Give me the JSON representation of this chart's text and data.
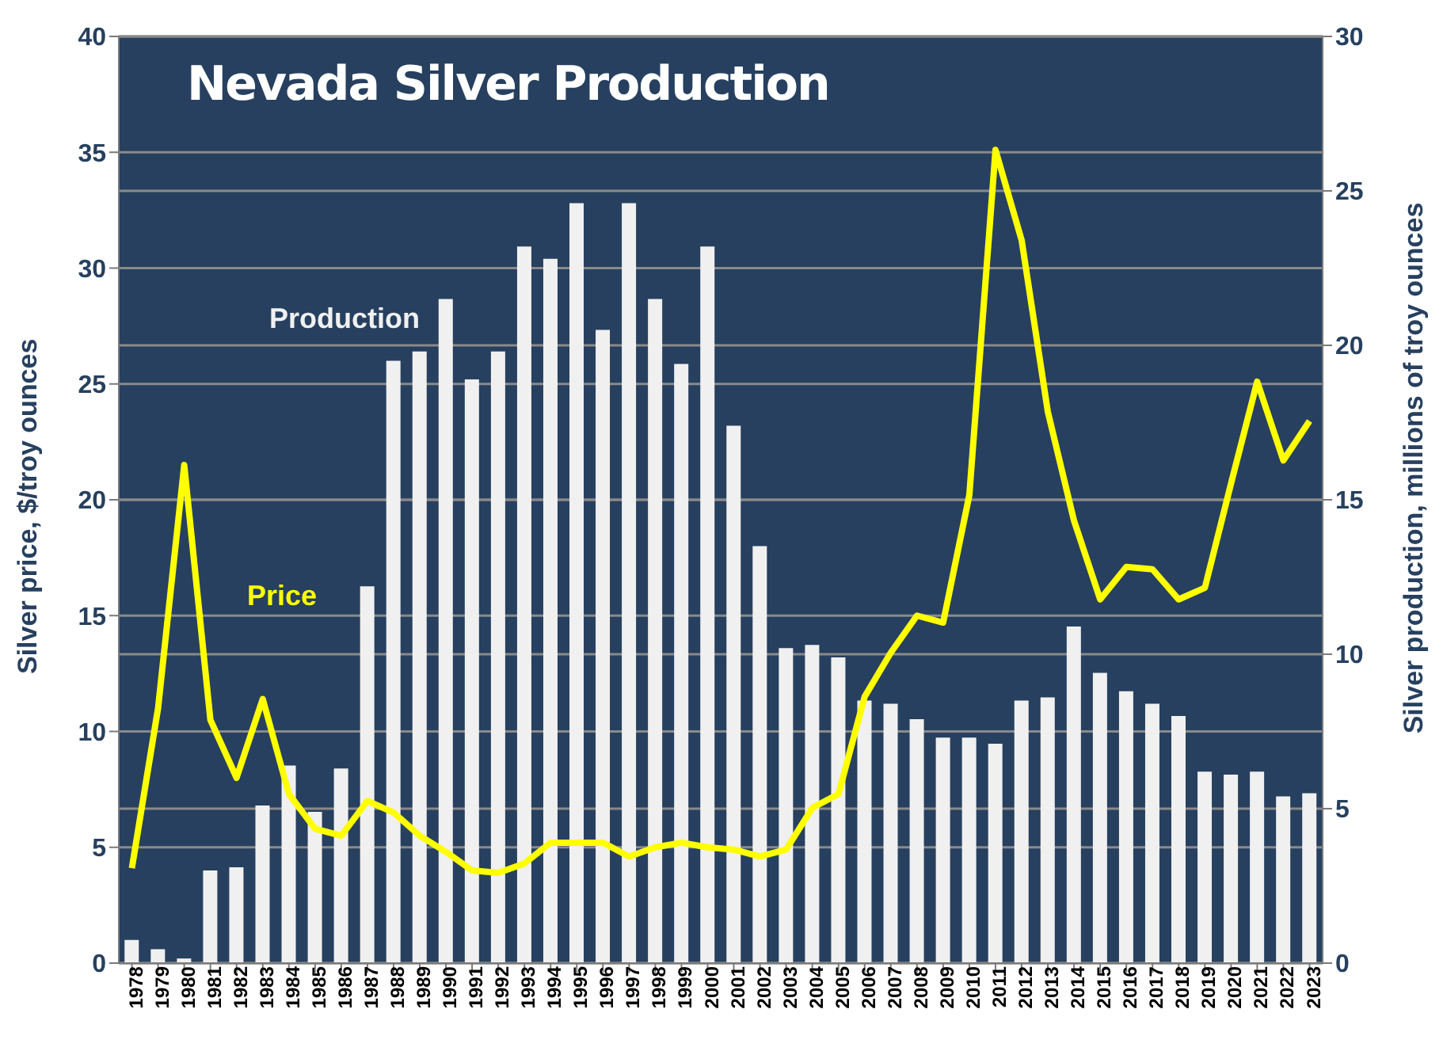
{
  "chart_data": {
    "type": "bar",
    "title": "Nevada Silver Production",
    "ylabel": "Silver price, $/troy ounces",
    "y2label": "Silver production, millions of troy ounces",
    "categories": [
      "1978",
      "1979",
      "1980",
      "1981",
      "1982",
      "1983",
      "1984",
      "1985",
      "1986",
      "1987",
      "1988",
      "1989",
      "1990",
      "1991",
      "1992",
      "1993",
      "1994",
      "1995",
      "1996",
      "1997",
      "1998",
      "1999",
      "2000",
      "2001",
      "2002",
      "2003",
      "2004",
      "2005",
      "2006",
      "2007",
      "2008",
      "2009",
      "2010",
      "2011",
      "2012",
      "2013",
      "2014",
      "2015",
      "2016",
      "2017",
      "2018",
      "2019",
      "2020",
      "2021",
      "2022",
      "2023"
    ],
    "series": [
      {
        "name": "Production",
        "axis": "y2",
        "color": "#f0f0f0",
        "values": [
          0.75,
          0.45,
          0.15,
          3.0,
          3.1,
          5.1,
          6.4,
          4.9,
          6.3,
          12.2,
          19.5,
          19.8,
          21.5,
          18.9,
          19.8,
          23.2,
          22.8,
          24.6,
          20.5,
          24.6,
          21.5,
          19.4,
          23.2,
          17.4,
          13.5,
          10.2,
          10.3,
          9.9,
          8.5,
          8.4,
          7.9,
          7.3,
          7.3,
          7.1,
          8.5,
          8.6,
          10.9,
          9.4,
          8.8,
          8.4,
          8.0,
          6.2,
          6.1,
          6.2,
          5.4,
          5.5
        ]
      },
      {
        "name": "Price",
        "type": "line",
        "color": "#ffff00",
        "values": [
          4.1,
          11,
          21.5,
          10.5,
          8,
          11.4,
          7.3,
          5.8,
          5.5,
          7,
          6.5,
          5.5,
          4.8,
          4.0,
          3.9,
          4.3,
          5.2,
          5.2,
          5.2,
          4.6,
          5.0,
          5.2,
          5.0,
          4.9,
          4.6,
          4.9,
          6.7,
          7.3,
          11.5,
          13.4,
          15.0,
          14.7,
          20.2,
          35.1,
          31.2,
          23.8,
          19.1,
          15.7,
          17.1,
          17.0,
          15.7,
          16.2,
          20.7,
          25.1,
          21.7,
          23.4
        ]
      }
    ],
    "ylim": [
      0,
      40
    ],
    "yticks": [
      0,
      5,
      10,
      15,
      20,
      25,
      30,
      35,
      40
    ],
    "y2lim": [
      0,
      30
    ],
    "y2ticks": [
      0,
      5,
      10,
      15,
      20,
      25,
      30
    ],
    "grid": "y",
    "marker": "none",
    "line_style": "solid"
  }
}
